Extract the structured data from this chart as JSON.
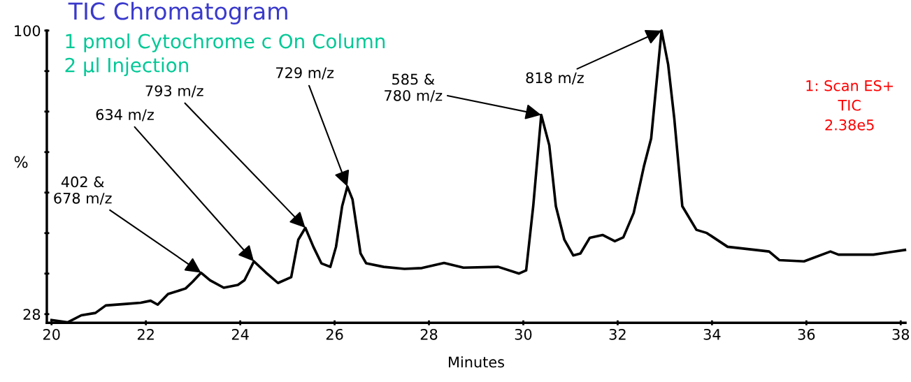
{
  "chart_data": {
    "type": "line",
    "title": "TIC Chromatogram",
    "subtitle": "1 pmol Cytochrome c On Column\n2 µl Injection",
    "xlabel": "Minutes",
    "ylabel": "%",
    "x": [
      20.0,
      20.34,
      20.63,
      20.93,
      21.15,
      21.59,
      21.89,
      22.1,
      22.25,
      22.47,
      22.84,
      22.99,
      23.17,
      23.36,
      23.65,
      23.95,
      24.09,
      24.29,
      24.54,
      24.8,
      25.08,
      25.23,
      25.38,
      25.55,
      25.72,
      25.91,
      26.03,
      26.16,
      26.27,
      26.38,
      26.55,
      26.67,
      27.04,
      27.48,
      27.85,
      28.32,
      28.73,
      29.47,
      29.91,
      30.06,
      30.21,
      30.38,
      30.55,
      30.69,
      30.87,
      31.06,
      31.21,
      31.41,
      31.68,
      31.94,
      32.12,
      32.34,
      32.56,
      32.71,
      32.93,
      33.07,
      33.2,
      33.37,
      33.67,
      33.89,
      34.33,
      34.92,
      35.21,
      35.43,
      35.95,
      36.51,
      36.68,
      37.42,
      38.09
    ],
    "series": [
      {
        "color": "#000000",
        "values": [
          26.5,
          25.9,
          27.7,
          28.3,
          30.2,
          30.6,
          30.9,
          31.4,
          30.4,
          33.1,
          34.5,
          36.2,
          38.5,
          36.6,
          34.7,
          35.4,
          36.6,
          41.4,
          38.6,
          35.9,
          37.4,
          46.9,
          49.9,
          45.1,
          40.9,
          40.0,
          45.1,
          55.4,
          60.4,
          57.1,
          43.4,
          40.9,
          40.0,
          39.5,
          39.7,
          41.0,
          39.8,
          40.0,
          38.3,
          39.1,
          55.4,
          78.6,
          70.9,
          55.4,
          46.9,
          42.9,
          43.4,
          47.4,
          48.1,
          46.5,
          47.5,
          53.7,
          65.7,
          72.6,
          100,
          91.4,
          77.7,
          55.4,
          49.4,
          48.6,
          45.1,
          44.3,
          43.9,
          41.7,
          41.4,
          43.9,
          43.1,
          43.1,
          44.3
        ]
      }
    ],
    "xlim": [
      19.9,
      38.1
    ],
    "xticks": [
      20,
      22,
      24,
      26,
      28,
      30,
      32,
      34,
      36,
      38
    ],
    "ylim": [
      25.8,
      100
    ],
    "yticks": [
      28,
      {
        "value": 38.29,
        "label": null
      },
      {
        "value": 48.57,
        "label": null
      },
      {
        "value": 58.86,
        "label": null
      },
      {
        "value": 69.14,
        "label": null
      },
      {
        "value": 79.43,
        "label": null
      },
      {
        "value": 89.71,
        "label": null
      },
      100
    ],
    "grid": false,
    "marker": "none",
    "line_style": "solid",
    "annotations": [
      {
        "text": "402 &\n678 m/z",
        "x": 23.17,
        "y": 38.5
      },
      {
        "text": "634 m/z",
        "x": 24.29,
        "y": 41.4
      },
      {
        "text": "793 m/z",
        "x": 25.38,
        "y": 49.9
      },
      {
        "text": "729 m/z",
        "x": 26.27,
        "y": 60.4
      },
      {
        "text": "585 &\n780 m/z",
        "x": 30.38,
        "y": 78.6
      },
      {
        "text": "818 m/z",
        "x": 32.93,
        "y": 100
      },
      "1: Scan ES+\nTIC\n2.38e5"
    ]
  }
}
